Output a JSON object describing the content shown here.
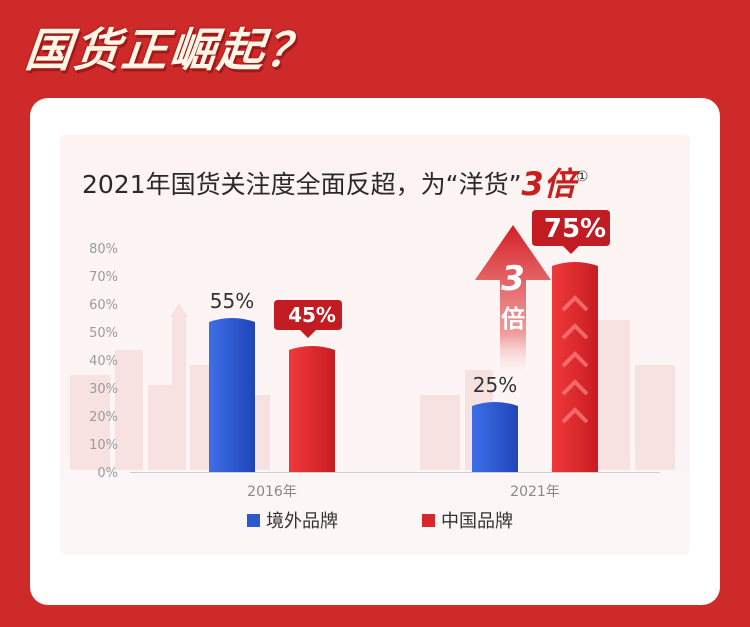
{
  "banner": {
    "title": "国货正崛起？"
  },
  "headline": {
    "text": "2021年国货关注度全面反超，为“洋货”",
    "emphasis": "3倍",
    "note": "①"
  },
  "growth_arrow": {
    "label_top": "3",
    "label_bottom": "倍"
  },
  "colors": {
    "foreign": "#2d59cf",
    "domestic": "#d8262c",
    "background": "#cf2a2a"
  },
  "chart_data": {
    "type": "bar",
    "categories": [
      "2016年",
      "2021年"
    ],
    "series": [
      {
        "name": "境外品牌",
        "values": [
          55,
          25
        ],
        "labels": [
          "55%",
          "25%"
        ],
        "color": "#2d59cf"
      },
      {
        "name": "中国品牌",
        "values": [
          45,
          75
        ],
        "labels": [
          "45%",
          "75%"
        ],
        "color": "#d8262c"
      }
    ],
    "ylim": [
      0,
      80
    ],
    "yticks": [
      "0%",
      "10%",
      "20%",
      "30%",
      "40%",
      "50%",
      "60%",
      "70%",
      "80%"
    ],
    "legend_position": "bottom"
  }
}
